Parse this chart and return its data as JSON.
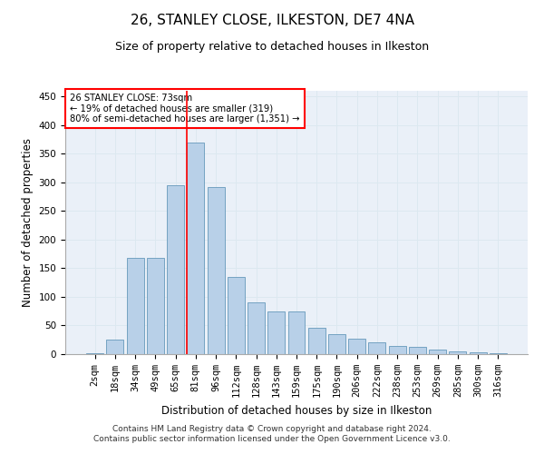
{
  "title": "26, STANLEY CLOSE, ILKESTON, DE7 4NA",
  "subtitle": "Size of property relative to detached houses in Ilkeston",
  "xlabel": "Distribution of detached houses by size in Ilkeston",
  "ylabel": "Number of detached properties",
  "categories": [
    "2sqm",
    "18sqm",
    "34sqm",
    "49sqm",
    "65sqm",
    "81sqm",
    "96sqm",
    "112sqm",
    "128sqm",
    "143sqm",
    "159sqm",
    "175sqm",
    "190sqm",
    "206sqm",
    "222sqm",
    "238sqm",
    "253sqm",
    "269sqm",
    "285sqm",
    "300sqm",
    "316sqm"
  ],
  "values": [
    2,
    25,
    168,
    168,
    295,
    370,
    292,
    135,
    90,
    75,
    75,
    46,
    35,
    27,
    20,
    15,
    12,
    8,
    5,
    3,
    1
  ],
  "bar_color": "#b8d0e8",
  "bar_edge_color": "#6699bb",
  "marker_label_line1": "26 STANLEY CLOSE: 73sqm",
  "marker_label_line2": "← 19% of detached houses are smaller (319)",
  "marker_label_line3": "80% of semi-detached houses are larger (1,351) →",
  "ylim": [
    0,
    460
  ],
  "yticks": [
    0,
    50,
    100,
    150,
    200,
    250,
    300,
    350,
    400,
    450
  ],
  "grid_color": "#dce8f0",
  "background_color": "#eaf0f8",
  "footer_line1": "Contains HM Land Registry data © Crown copyright and database right 2024.",
  "footer_line2": "Contains public sector information licensed under the Open Government Licence v3.0.",
  "title_fontsize": 11,
  "subtitle_fontsize": 9,
  "xlabel_fontsize": 8.5,
  "ylabel_fontsize": 8.5,
  "tick_fontsize": 7.5,
  "footer_fontsize": 6.5
}
